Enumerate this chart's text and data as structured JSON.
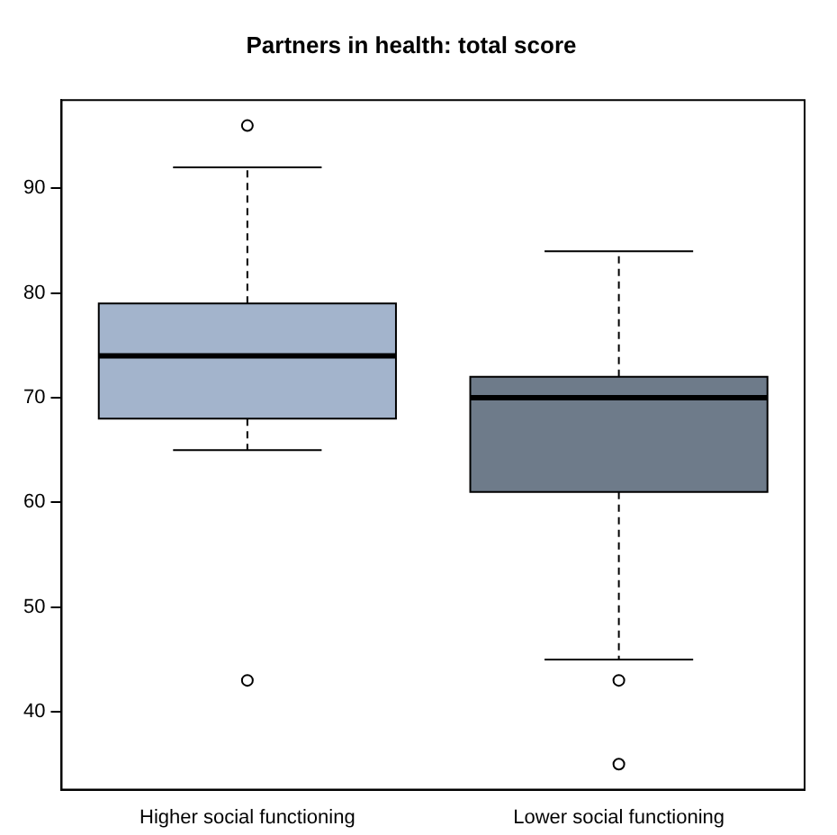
{
  "chart_data": {
    "type": "box",
    "title": "Partners in health: total score",
    "categories": [
      "Higher social functioning",
      "Lower social functioning"
    ],
    "colors": [
      "#a3b4cc",
      "#6e7b8a"
    ],
    "boxes": [
      {
        "low": 65,
        "q1": 68,
        "median": 74,
        "q3": 79,
        "high": 92,
        "outliers": [
          96,
          43
        ]
      },
      {
        "low": 45,
        "q1": 61,
        "median": 70,
        "q3": 72,
        "high": 84,
        "outliers": [
          43,
          35
        ]
      }
    ],
    "ylim": [
      32.56,
      98.44
    ],
    "yticks": [
      40,
      50,
      60,
      70,
      80,
      90
    ],
    "grid": false,
    "legend": false
  }
}
